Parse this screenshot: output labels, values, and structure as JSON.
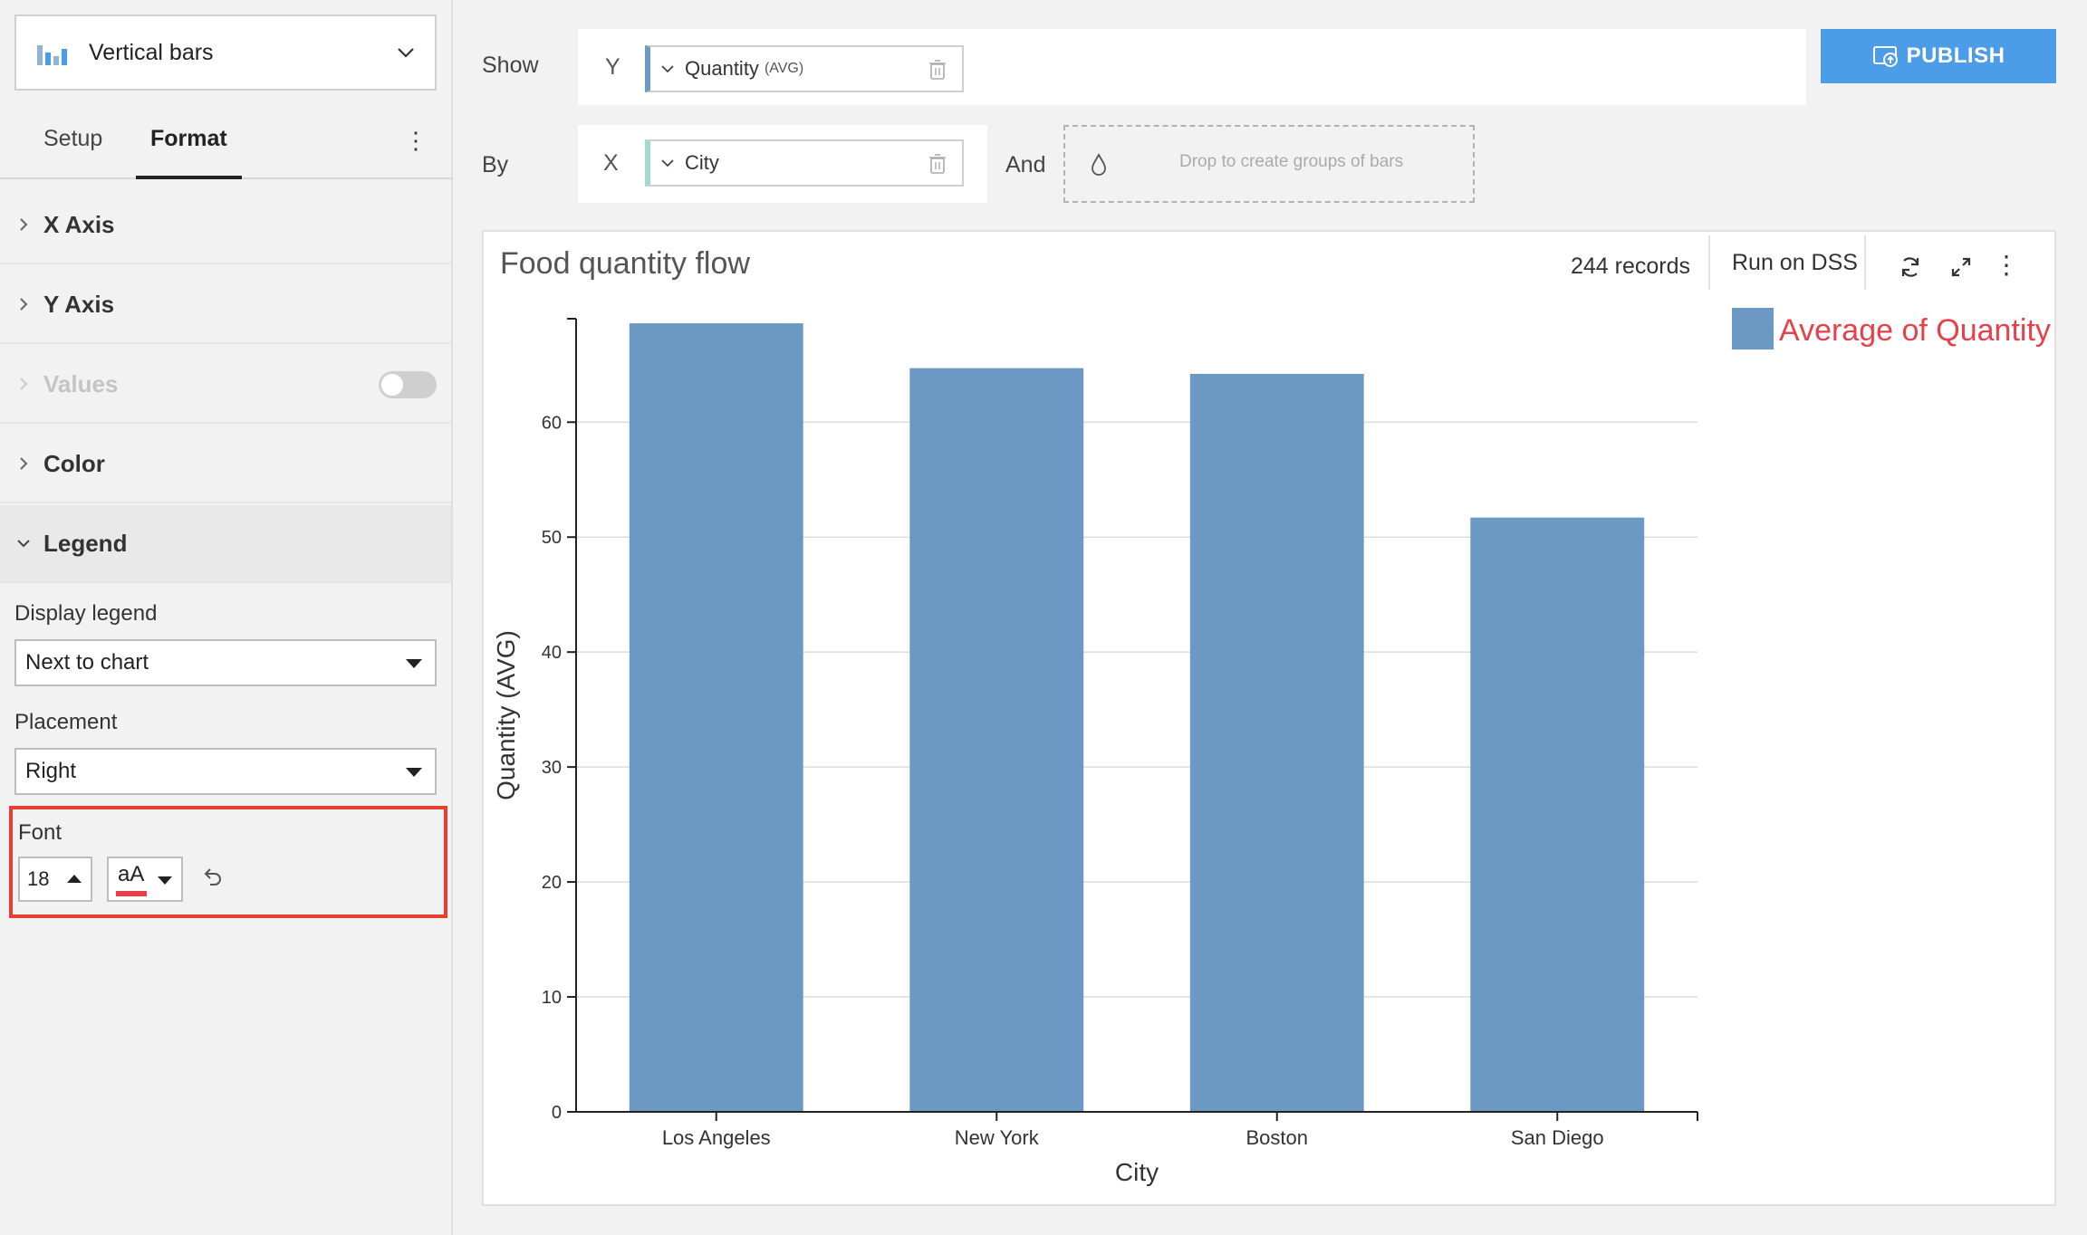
{
  "sidebar": {
    "chart_type": {
      "label": "Vertical bars",
      "icon": "vertical-bars-icon"
    },
    "tabs": [
      {
        "label": "Setup"
      },
      {
        "label": "Format"
      }
    ],
    "sections": [
      {
        "label": "X Axis"
      },
      {
        "label": "Y Axis"
      },
      {
        "label": "Values",
        "toggle_on": false
      },
      {
        "label": "Color"
      },
      {
        "label": "Legend"
      }
    ],
    "legend": {
      "display_label": "Display legend",
      "display_value": "Next to chart",
      "placement_label": "Placement",
      "placement_value": "Right",
      "font_label": "Font",
      "font_size": "18",
      "font_color_glyph": "aA",
      "font_color": "#e8404a"
    }
  },
  "shelves": {
    "show_label": "Show",
    "by_label": "By",
    "and_label": "And",
    "y_letter": "Y",
    "x_letter": "X",
    "y_measure": "Quantity",
    "y_agg": "(AVG)",
    "x_dimension": "City",
    "drop_text": "Drop to create groups of bars"
  },
  "publish": {
    "label": "PUBLISH"
  },
  "chart_panel": {
    "records": "244 records",
    "run_label": "Run on DSS"
  },
  "colors": {
    "bar": "#6b99c4",
    "accent": "#4d9ce8",
    "legend_text": "#e8404a",
    "highlight_border": "#e8402f"
  },
  "chart_data": {
    "type": "bar",
    "title": "Food quantity flow",
    "categories": [
      "Los Angeles",
      "New York",
      "Boston",
      "San Diego"
    ],
    "series": [
      {
        "name": "Average of Quantity",
        "values": [
          68.6,
          64.7,
          64.2,
          51.7
        ]
      }
    ],
    "xlabel": "City",
    "ylabel": "Quantity (AVG)",
    "ylim": [
      0,
      69
    ],
    "yticks": [
      0,
      10,
      20,
      30,
      40,
      50,
      60
    ],
    "grid": true,
    "legend": {
      "position": "right"
    }
  }
}
